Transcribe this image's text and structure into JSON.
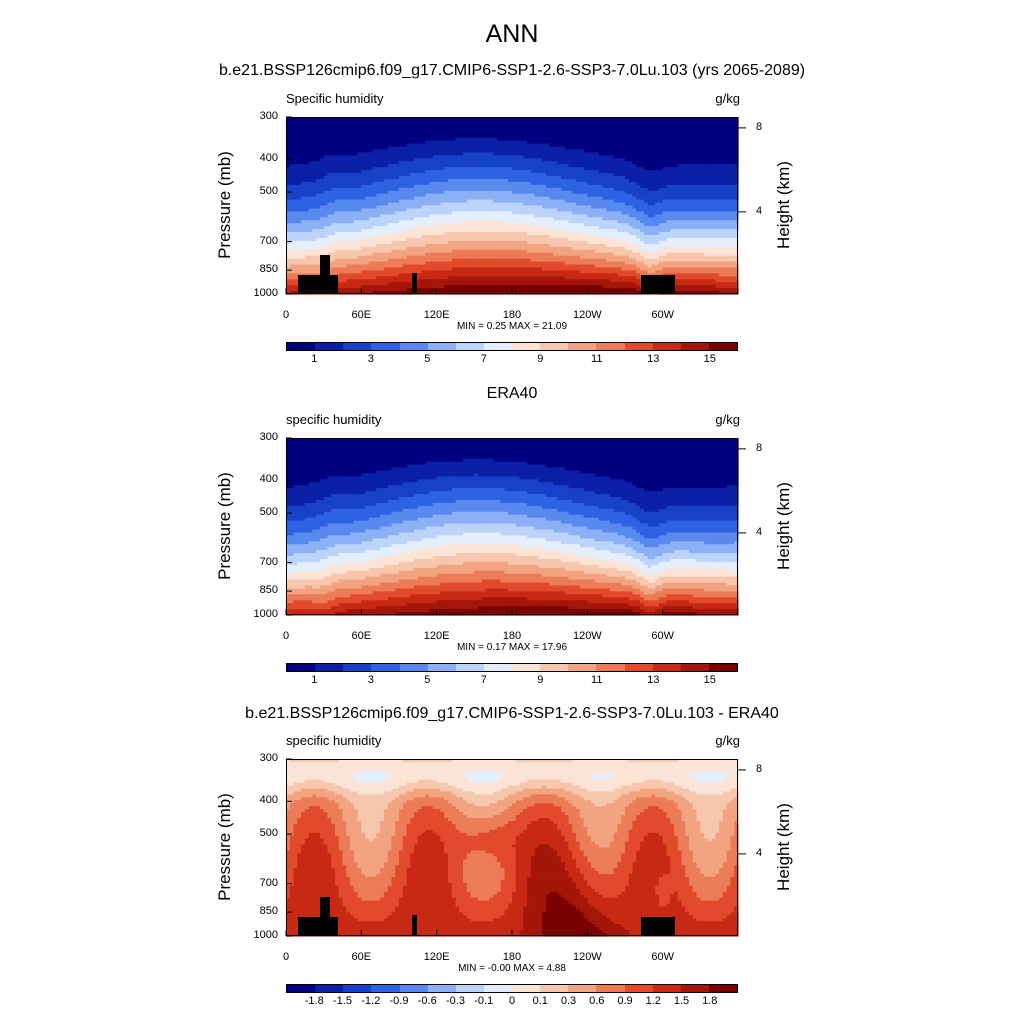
{
  "title": "ANN",
  "colors": {
    "abs_scale": [
      "#000080",
      "#0a21a6",
      "#1742c8",
      "#2d63e3",
      "#5889ee",
      "#8cb0f5",
      "#bcd3fa",
      "#e4eefd",
      "#fbe4d6",
      "#f7c7ad",
      "#f2a481",
      "#eb7c57",
      "#e14b2c",
      "#c82914",
      "#a31608",
      "#7a0000"
    ],
    "diff_scale": [
      "#000080",
      "#0a21a6",
      "#1742c8",
      "#2d63e3",
      "#5889ee",
      "#8cb0f5",
      "#bcd3fa",
      "#e4eefd",
      "#fbe4d6",
      "#f7c7ad",
      "#f2a481",
      "#eb7c57",
      "#e14b2c",
      "#c82914",
      "#a31608",
      "#7a0000"
    ]
  },
  "chart_data": [
    {
      "type": "heatmap",
      "title": "b.e21.BSSP126cmip6.f09_g17.CMIP6-SSP1-2.6-SSP3-7.0Lu.103 (yrs 2065-2089)",
      "variable_left": "Specific humidity",
      "units": "g/kg",
      "ylabel": "Pressure (mb)",
      "ylabel_right": "Height (km)",
      "x_ticks": [
        "0",
        "60E",
        "120E",
        "180",
        "120W",
        "60W"
      ],
      "x_tick_lon": [
        0,
        60,
        120,
        180,
        240,
        300
      ],
      "xlim": [
        0,
        360
      ],
      "y_ticks": [
        "300",
        "400",
        "500",
        "700",
        "850",
        "1000"
      ],
      "y_tick_p": [
        300,
        400,
        500,
        700,
        850,
        1000
      ],
      "y_ticks_right": [
        "8",
        "4"
      ],
      "y_tick_right_km": [
        8,
        4
      ],
      "minmax": "MIN =   0.25  MAX =  21.09",
      "min": 0.25,
      "max": 21.09,
      "colorbar_levels": [
        "1",
        "3",
        "5",
        "7",
        "9",
        "11",
        "13",
        "15"
      ],
      "field": "abs",
      "has_terrain": true
    },
    {
      "type": "heatmap",
      "title": "ERA40",
      "variable_left": "specific humidity",
      "units": "g/kg",
      "ylabel": "Pressure (mb)",
      "ylabel_right": "Height (km)",
      "x_ticks": [
        "0",
        "60E",
        "120E",
        "180",
        "120W",
        "60W"
      ],
      "x_tick_lon": [
        0,
        60,
        120,
        180,
        240,
        300
      ],
      "xlim": [
        0,
        360
      ],
      "y_ticks": [
        "300",
        "400",
        "500",
        "700",
        "850",
        "1000"
      ],
      "y_tick_p": [
        300,
        400,
        500,
        700,
        850,
        1000
      ],
      "y_ticks_right": [
        "8",
        "4"
      ],
      "y_tick_right_km": [
        8,
        4
      ],
      "minmax": "MIN =   0.17  MAX =  17.96",
      "min": 0.17,
      "max": 17.96,
      "colorbar_levels": [
        "1",
        "3",
        "5",
        "7",
        "9",
        "11",
        "13",
        "15"
      ],
      "field": "abs_era",
      "has_terrain": false
    },
    {
      "type": "heatmap",
      "title": "b.e21.BSSP126cmip6.f09_g17.CMIP6-SSP1-2.6-SSP3-7.0Lu.103 - ERA40",
      "variable_left": "specific humidity",
      "units": "g/kg",
      "ylabel": "Pressure (mb)",
      "ylabel_right": "Height (km)",
      "x_ticks": [
        "0",
        "60E",
        "120E",
        "180",
        "120W",
        "60W"
      ],
      "x_tick_lon": [
        0,
        60,
        120,
        180,
        240,
        300
      ],
      "xlim": [
        0,
        360
      ],
      "y_ticks": [
        "300",
        "400",
        "500",
        "700",
        "850",
        "1000"
      ],
      "y_tick_p": [
        300,
        400,
        500,
        700,
        850,
        1000
      ],
      "y_ticks_right": [
        "8",
        "4"
      ],
      "y_tick_right_km": [
        8,
        4
      ],
      "minmax": "MIN =  -0.00  MAX =   4.88",
      "min": -0.0,
      "max": 4.88,
      "colorbar_levels": [
        "-1.8",
        "-1.5",
        "-1.2",
        "-0.9",
        "-0.6",
        "-0.3",
        "-0.1",
        "0",
        "0.1",
        "0.3",
        "0.6",
        "0.9",
        "1.2",
        "1.5",
        "1.8"
      ],
      "field": "diff",
      "has_terrain": true
    }
  ]
}
